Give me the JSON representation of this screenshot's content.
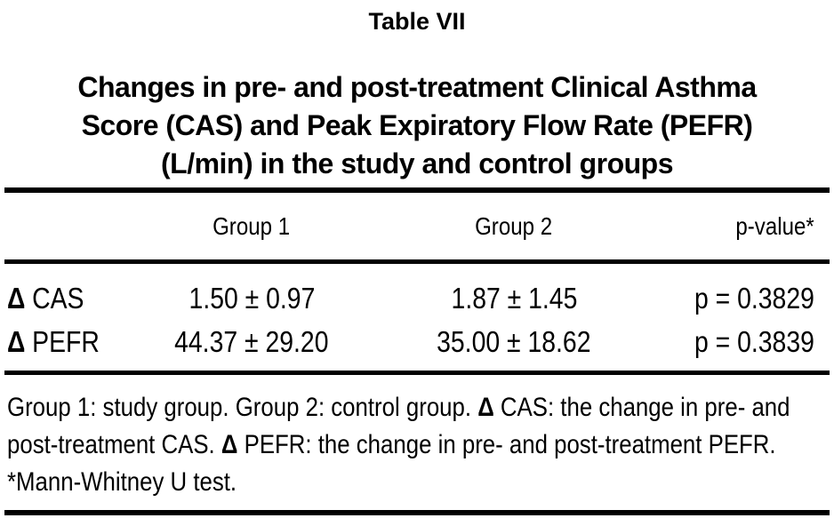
{
  "page": {
    "title": "Table VII",
    "subtitle_lines": [
      "Changes in pre- and post-treatment Clinical Asthma",
      "Score (CAS) and Peak Expiratory Flow Rate (PEFR)",
      "(L/min) in the study and control groups"
    ]
  },
  "table": {
    "columns": [
      "",
      "Group 1",
      "Group 2",
      "p-value*"
    ],
    "rows": [
      {
        "symbol": "Δ",
        "label": "CAS",
        "group1": "1.50 ± 0.97",
        "group2": "1.87 ± 1.45",
        "p_value": "p = 0.3829"
      },
      {
        "symbol": "Δ",
        "label": "PEFR",
        "group1": "44.37 ± 29.20",
        "group2": "35.00 ± 18.62",
        "p_value": "p = 0.3839"
      }
    ]
  },
  "footnote": {
    "lines": [
      [
        {
          "t": "Group 1: study group. Group 2: control group. "
        },
        {
          "t": "Δ",
          "b": true
        },
        {
          "t": " CAS: the change in pre- and"
        }
      ],
      [
        {
          "t": "post-treatment CAS. "
        },
        {
          "t": "Δ",
          "b": true
        },
        {
          "t": " PEFR: the change in pre- and post-treatment PEFR."
        }
      ],
      [
        {
          "t": "*Mann-Whitney U test."
        }
      ]
    ]
  },
  "colors": {
    "background": "#ffffff",
    "text": "#000000",
    "rule": "#000000"
  },
  "chart_data": {
    "type": "table",
    "title": "Table VII — Changes in pre- and post-treatment Clinical Asthma Score (CAS) and Peak Expiratory Flow Rate (PEFR) (L/min) in the study and control groups",
    "columns": [
      "",
      "Group 1",
      "Group 2",
      "p-value*"
    ],
    "rows": [
      [
        "Δ CAS",
        "1.50 ± 0.97",
        "1.87 ± 1.45",
        "p = 0.3829"
      ],
      [
        "Δ PEFR",
        "44.37 ± 29.20",
        "35.00 ± 18.62",
        "p = 0.3839"
      ]
    ],
    "notes": "Group 1: study group. Group 2: control group. Δ CAS: the change in pre- and post-treatment CAS. Δ PEFR: the change in pre- and post-treatment PEFR. *Mann-Whitney U test."
  }
}
